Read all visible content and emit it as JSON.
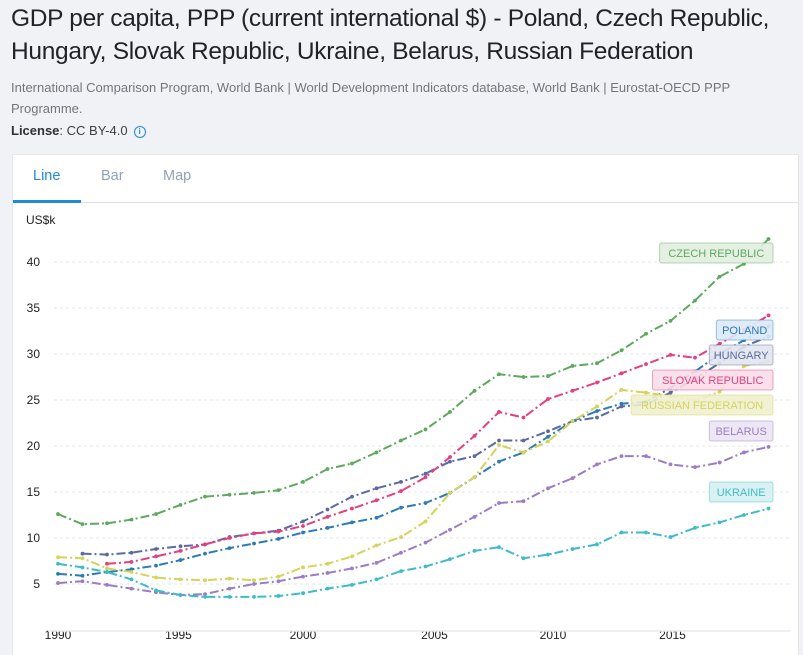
{
  "page": {
    "title": "GDP per capita, PPP (current international $) - Poland, Czech Republic, Hungary, Slovak Republic, Ukraine, Belarus, Russian Federation",
    "source": "International Comparison Program, World Bank | World Development Indicators database, World Bank | Eurostat-OECD PPP Programme.",
    "license_label": "License",
    "license_value": ": CC BY-4.0",
    "info_icon": "info-icon"
  },
  "tabs": [
    {
      "label": "Line",
      "active": true
    },
    {
      "label": "Bar",
      "active": false
    },
    {
      "label": "Map",
      "active": false
    }
  ],
  "colors": {
    "accent": "#1f8ad6"
  },
  "chart_data": {
    "type": "line",
    "title": "",
    "ylabel": "US$k",
    "xlabel": "",
    "ylim": [
      0,
      45
    ],
    "xlim": [
      1990,
      2019
    ],
    "grid": true,
    "yticks": [
      5,
      10,
      15,
      20,
      25,
      30,
      35,
      40
    ],
    "xticks": [
      1990,
      1995,
      2000,
      2005,
      2010,
      2015
    ],
    "x": [
      1990,
      1991,
      1992,
      1993,
      1994,
      1995,
      1996,
      1997,
      1998,
      1999,
      2000,
      2001,
      2002,
      2003,
      2004,
      2005,
      2006,
      2007,
      2008,
      2009,
      2010,
      2011,
      2012,
      2013,
      2014,
      2015,
      2016,
      2017,
      2018,
      2019
    ],
    "series": [
      {
        "name": "CZECH REPUBLIC",
        "color": "#5fa85f",
        "label_bg": "#e1f0df",
        "values": [
          12.6,
          11.5,
          11.6,
          12.0,
          12.6,
          13.6,
          14.5,
          14.7,
          14.9,
          15.2,
          16.1,
          17.5,
          18.1,
          19.3,
          20.6,
          21.8,
          23.7,
          26.0,
          27.8,
          27.5,
          27.6,
          28.7,
          29.0,
          30.4,
          32.2,
          33.6,
          35.8,
          38.4,
          39.8,
          42.5
        ]
      },
      {
        "name": "POLAND",
        "color": "#2c7bb9",
        "label_bg": "#dbe9f5",
        "values": [
          6.1,
          5.9,
          6.3,
          6.6,
          7.0,
          7.6,
          8.3,
          8.9,
          9.4,
          9.9,
          10.6,
          11.1,
          11.7,
          12.2,
          13.3,
          13.8,
          14.9,
          16.6,
          18.3,
          19.3,
          21.0,
          22.7,
          23.8,
          24.6,
          24.8,
          26.3,
          28.1,
          30.0,
          31.5,
          33.0
        ]
      },
      {
        "name": "HUNGARY",
        "color": "#5a6aa0",
        "label_bg": "#e2e4ef",
        "values": [
          null,
          8.3,
          8.2,
          8.4,
          8.8,
          9.1,
          9.3,
          10.1,
          10.5,
          10.8,
          11.8,
          13.1,
          14.5,
          15.4,
          16.1,
          17.0,
          18.3,
          18.9,
          20.6,
          20.6,
          21.6,
          22.7,
          23.1,
          24.3,
          24.5,
          25.8,
          27.3,
          29.0,
          30.8,
          31.9
        ]
      },
      {
        "name": "SLOVAK REPUBLIC",
        "color": "#e2407f",
        "label_bg": "#f8dde8",
        "values": [
          null,
          null,
          7.2,
          7.4,
          8.0,
          8.6,
          9.3,
          10.0,
          10.5,
          10.7,
          11.3,
          12.3,
          13.2,
          14.1,
          15.1,
          16.6,
          18.8,
          21.1,
          23.7,
          23.1,
          25.1,
          26.0,
          26.9,
          27.9,
          28.9,
          29.9,
          29.6,
          31.1,
          32.6,
          34.2
        ]
      },
      {
        "name": "RUSSIAN FEDERATION",
        "color": "#d4d35a",
        "label_bg": "#f0f0cf",
        "values": [
          7.9,
          7.8,
          6.7,
          6.3,
          5.7,
          5.5,
          5.4,
          5.6,
          5.4,
          5.8,
          6.8,
          7.2,
          8.0,
          9.2,
          10.1,
          11.8,
          14.9,
          16.6,
          20.1,
          19.3,
          20.5,
          22.7,
          24.3,
          26.1,
          25.8,
          25.4,
          24.9,
          25.9,
          28.7,
          29.2
        ]
      },
      {
        "name": "BELARUS",
        "color": "#9b7dc4",
        "label_bg": "#ebe4f3",
        "values": [
          5.1,
          5.3,
          4.9,
          4.5,
          4.1,
          3.8,
          3.9,
          4.5,
          5.0,
          5.3,
          5.8,
          6.2,
          6.7,
          7.3,
          8.4,
          9.5,
          10.9,
          12.3,
          13.8,
          14.0,
          15.4,
          16.5,
          18.0,
          18.9,
          18.9,
          18.0,
          17.7,
          18.2,
          19.3,
          19.9
        ]
      },
      {
        "name": "UKRAINE",
        "color": "#3dbcc8",
        "label_bg": "#d6eff2",
        "values": [
          7.2,
          6.8,
          6.3,
          5.5,
          4.3,
          3.8,
          3.6,
          3.6,
          3.6,
          3.7,
          4.0,
          4.5,
          4.9,
          5.5,
          6.4,
          6.9,
          7.7,
          8.6,
          9.0,
          7.8,
          8.2,
          8.8,
          9.3,
          10.6,
          10.6,
          10.1,
          11.1,
          11.7,
          12.5,
          13.2
        ]
      }
    ],
    "end_labels_order": [
      "CZECH REPUBLIC",
      "POLAND",
      "HUNGARY",
      "SLOVAK REPUBLIC",
      "RUSSIAN FEDERATION",
      "BELARUS",
      "UKRAINE"
    ],
    "legend": "end-of-line labels (right)"
  }
}
